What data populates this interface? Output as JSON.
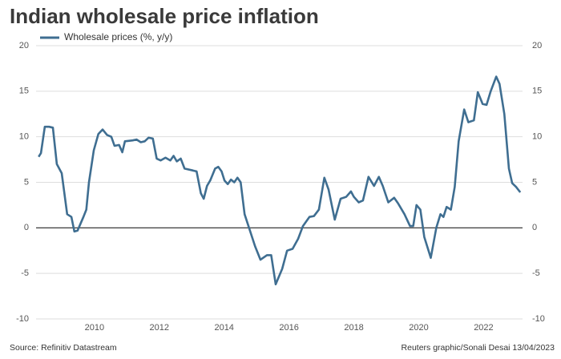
{
  "chart_data": {
    "type": "line",
    "title": "Indian wholesale price inflation",
    "source": "Source: Refinitiv Datastream",
    "credit": "Reuters graphic/Sonali Desai 13/04/2023",
    "xlim": [
      2008.2,
      2023.2
    ],
    "xticks": [
      2010,
      2012,
      2014,
      2016,
      2018,
      2020,
      2022
    ],
    "ylim": [
      -10,
      20
    ],
    "yticks": [
      -10,
      -5,
      0,
      5,
      10,
      15,
      20
    ],
    "y2lim": [
      -10,
      20
    ],
    "y2ticks": [
      -10,
      -5,
      0,
      5,
      10,
      15,
      20
    ],
    "grid": true,
    "legend": "top-left",
    "x": [
      2008.28,
      2008.35,
      2008.47,
      2008.6,
      2008.72,
      2008.84,
      2008.99,
      2009.16,
      2009.29,
      2009.38,
      2009.48,
      2009.66,
      2009.75,
      2009.83,
      2009.98,
      2010.12,
      2010.25,
      2010.39,
      2010.52,
      2010.62,
      2010.76,
      2010.86,
      2010.94,
      2011.18,
      2011.3,
      2011.43,
      2011.55,
      2011.67,
      2011.8,
      2011.92,
      2012.04,
      2012.19,
      2012.34,
      2012.44,
      2012.54,
      2012.66,
      2012.78,
      2013.03,
      2013.15,
      2013.28,
      2013.37,
      2013.47,
      2013.57,
      2013.72,
      2013.82,
      2013.92,
      2014.01,
      2014.11,
      2014.21,
      2014.31,
      2014.41,
      2014.51,
      2014.63,
      2014.95,
      2015.12,
      2015.32,
      2015.45,
      2015.59,
      2015.79,
      2015.94,
      2016.11,
      2016.28,
      2016.43,
      2016.63,
      2016.77,
      2016.92,
      2017.09,
      2017.22,
      2017.41,
      2017.59,
      2017.76,
      2017.91,
      2018.0,
      2018.15,
      2018.28,
      2018.45,
      2018.62,
      2018.77,
      2018.89,
      2019.06,
      2019.24,
      2019.36,
      2019.56,
      2019.73,
      2019.83,
      2019.93,
      2020.05,
      2020.17,
      2020.37,
      2020.54,
      2020.67,
      2020.76,
      2020.86,
      2020.99,
      2021.11,
      2021.23,
      2021.4,
      2021.53,
      2021.7,
      2021.82,
      2021.97,
      2022.09,
      2022.22,
      2022.39,
      2022.49,
      2022.64,
      2022.78,
      2022.88,
      2023.0,
      2023.13
    ],
    "series": [
      {
        "name": "Wholesale prices (%, y/y)",
        "color": "#3f6e91",
        "values": [
          7.8,
          8.2,
          11.1,
          11.1,
          11.0,
          7.0,
          6.0,
          1.5,
          1.2,
          -0.4,
          -0.3,
          1.2,
          2.0,
          5.0,
          8.5,
          10.3,
          10.8,
          10.2,
          10.0,
          9.0,
          9.1,
          8.3,
          9.5,
          9.6,
          9.7,
          9.4,
          9.5,
          9.9,
          9.8,
          7.6,
          7.4,
          7.7,
          7.4,
          7.9,
          7.3,
          7.6,
          6.5,
          6.3,
          6.2,
          3.8,
          3.2,
          4.6,
          5.2,
          6.5,
          6.7,
          6.2,
          5.2,
          4.8,
          5.3,
          5.0,
          5.5,
          5.0,
          1.5,
          -2.0,
          -3.5,
          -3.0,
          -3.0,
          -6.2,
          -4.5,
          -2.5,
          -2.3,
          -1.2,
          0.2,
          1.2,
          1.3,
          2.0,
          5.5,
          4.2,
          0.9,
          3.2,
          3.4,
          4.0,
          3.4,
          2.8,
          3.0,
          5.6,
          4.6,
          5.6,
          4.6,
          2.8,
          3.3,
          2.7,
          1.5,
          0.2,
          0.2,
          2.5,
          2.0,
          -1.0,
          -3.3,
          0.0,
          1.5,
          1.2,
          2.3,
          2.0,
          4.5,
          9.5,
          13.0,
          11.6,
          11.8,
          14.9,
          13.6,
          13.5,
          15.0,
          16.6,
          15.8,
          12.5,
          6.5,
          4.9,
          4.5,
          3.9
        ]
      }
    ]
  }
}
